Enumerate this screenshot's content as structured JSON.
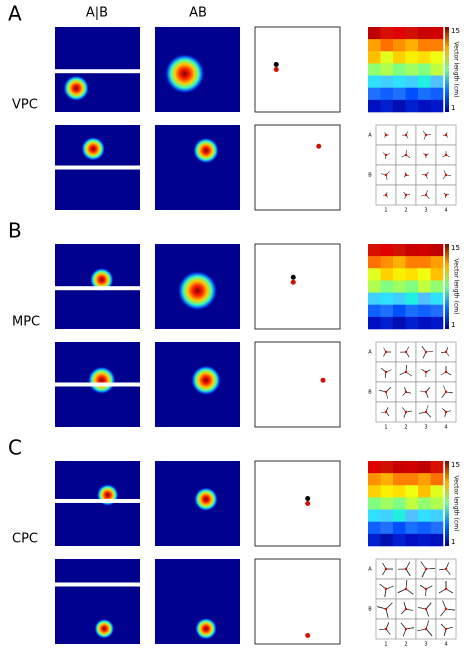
{
  "columns": [
    "A|B",
    "AB"
  ],
  "panels": [
    {
      "label": "A",
      "region": "VPC"
    },
    {
      "label": "B",
      "region": "MPC"
    },
    {
      "label": "C",
      "region": "CPC"
    }
  ],
  "colorbar": {
    "max": "15",
    "min": "1",
    "title": "Vector length (cm)"
  },
  "grid_labels": {
    "rows": [
      "A",
      "B"
    ],
    "cols": [
      "1",
      "2",
      "3",
      "4"
    ]
  }
}
